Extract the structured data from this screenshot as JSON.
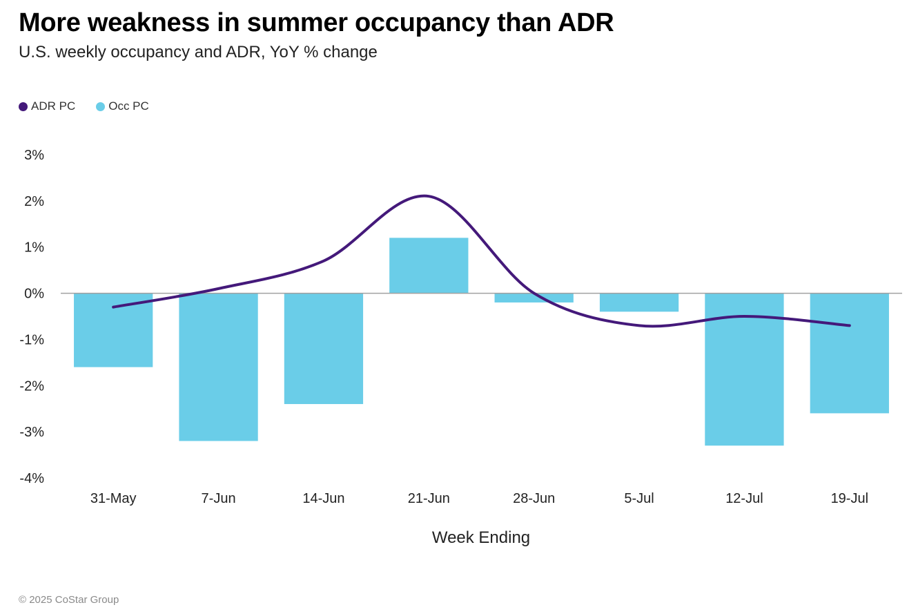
{
  "header": {
    "title": "More weakness in summer occupancy than ADR",
    "subtitle": "U.S. weekly occupancy and ADR, YoY % change"
  },
  "footer": {
    "copyright": "© 2025 CoStar Group"
  },
  "colors": {
    "adr_line": "#44197a",
    "occ_bar": "#6acde8",
    "zero_line": "#a0a0a0"
  },
  "chart_data": {
    "type": "bar",
    "categories": [
      "31-May",
      "7-Jun",
      "14-Jun",
      "21-Jun",
      "28-Jun",
      "5-Jul",
      "12-Jul",
      "19-Jul"
    ],
    "series": [
      {
        "name": "ADR PC",
        "type": "line",
        "values": [
          -0.3,
          0.1,
          0.7,
          2.1,
          0.0,
          -0.7,
          -0.5,
          -0.7
        ]
      },
      {
        "name": "Occ PC",
        "type": "bar",
        "values": [
          -1.6,
          -3.2,
          -2.4,
          1.2,
          -0.2,
          -0.4,
          -3.3,
          -2.6
        ]
      }
    ],
    "xlabel": "Week Ending",
    "ylabel": "",
    "ylim": [
      -4,
      3
    ],
    "yticks": [
      3,
      2,
      1,
      0,
      -1,
      -2,
      -3,
      -4
    ],
    "ytick_labels": [
      "3%",
      "2%",
      "1%",
      "0%",
      "-1%",
      "-2%",
      "-3%",
      "-4%"
    ],
    "legend": "top-left",
    "grid": false
  }
}
